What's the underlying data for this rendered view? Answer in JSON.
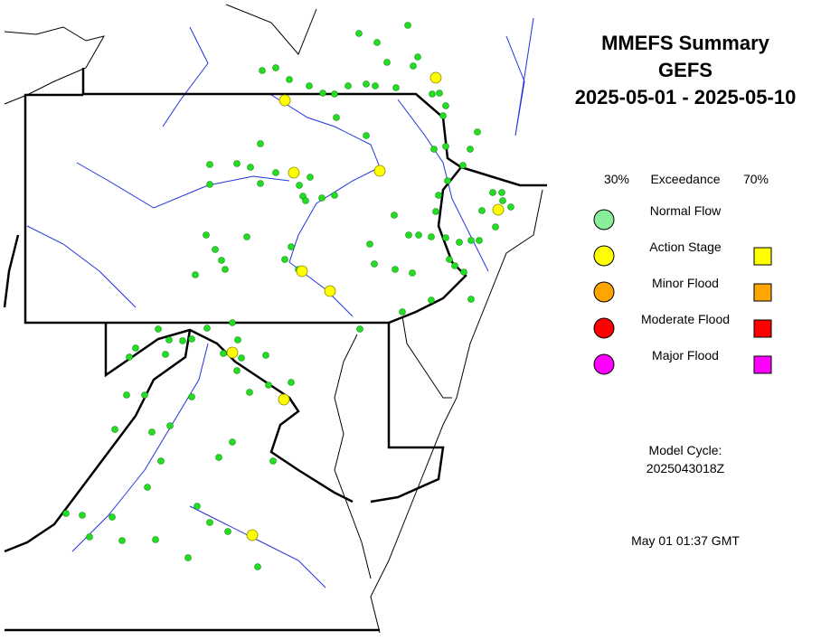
{
  "title": [
    "MMEFS Summary",
    "GEFS",
    "2025-05-01 - 2025-05-10"
  ],
  "legend": {
    "header": [
      "30%",
      "Exceedance",
      "70%"
    ],
    "items": [
      "Normal Flow",
      "Action Stage",
      "Minor Flood",
      "Moderate Flood",
      "Major Flood"
    ]
  },
  "model_cycle": {
    "label": "Model Cycle:",
    "value": "2025043018Z"
  },
  "timestamp": "May 01 01:37 GMT"
}
